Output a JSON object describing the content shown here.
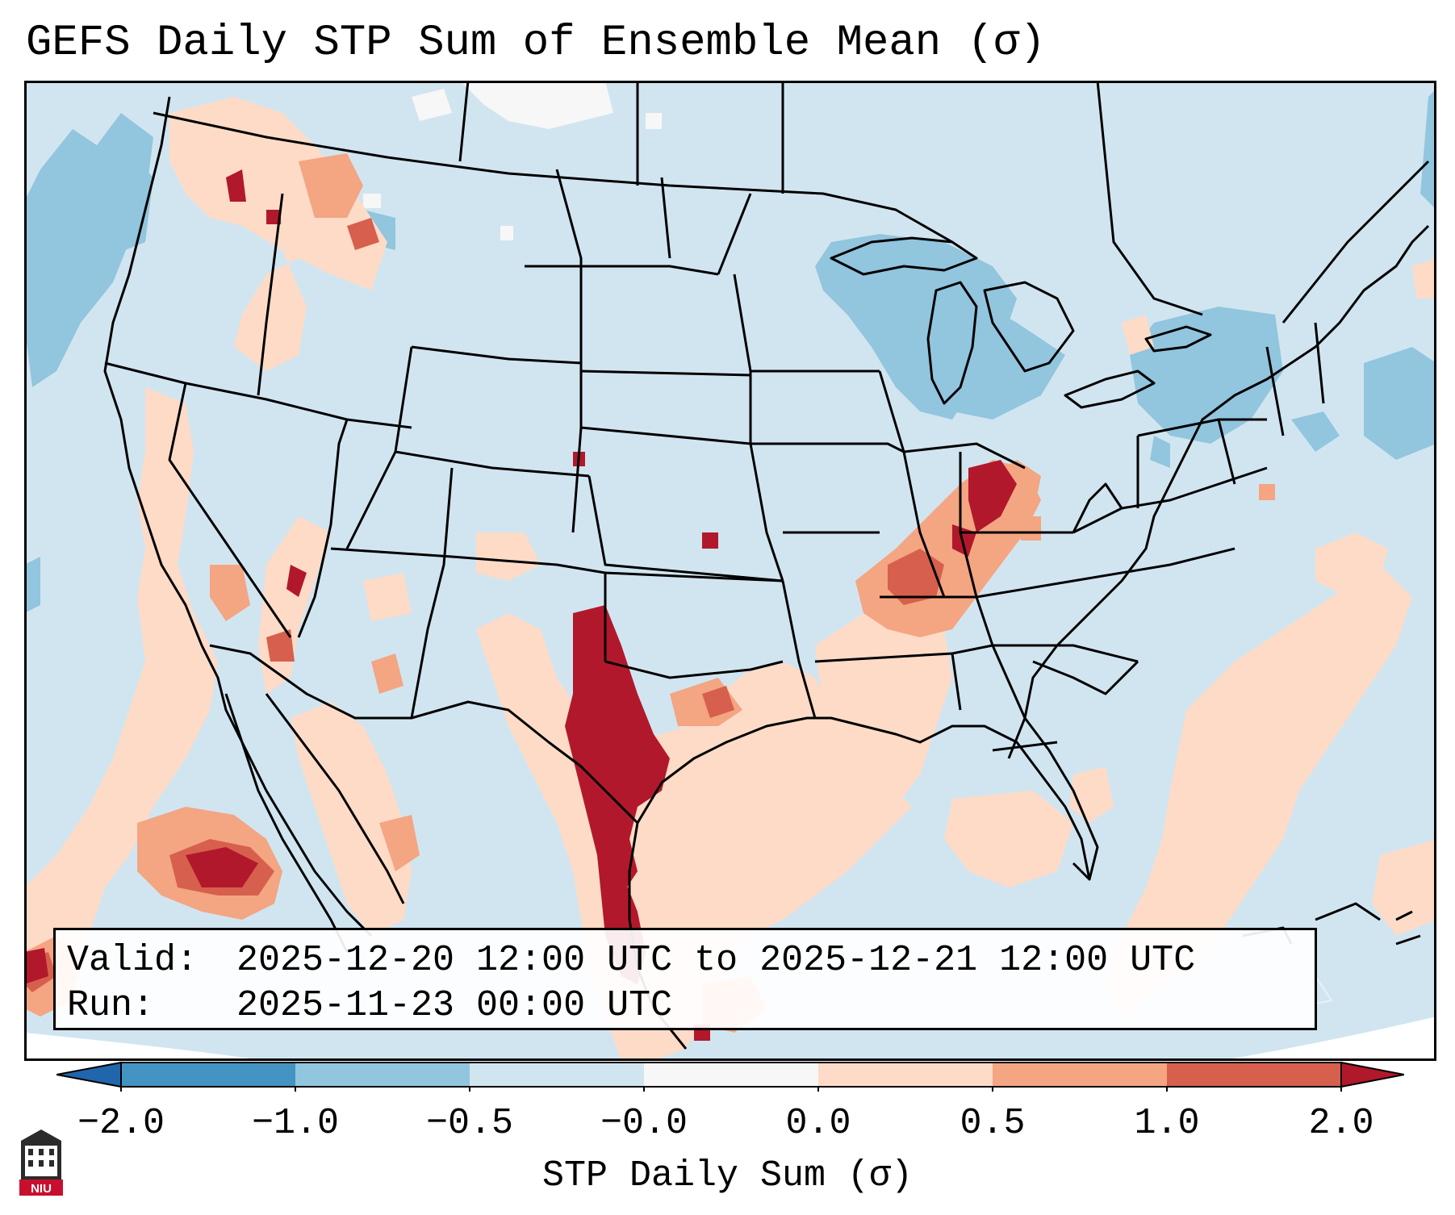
{
  "title": "GEFS Daily STP Sum of Ensemble Mean (σ)",
  "info": {
    "valid_label": "Valid:",
    "valid_value": "2025-12-20 12:00 UTC to 2025-12-21 12:00 UTC",
    "run_label": "Run:",
    "run_value": "2025-11-23 00:00 UTC"
  },
  "colorbar": {
    "label": "STP Daily Sum (σ)",
    "ticks": [
      "−2.0",
      "−1.0",
      "−0.5",
      "−0.0",
      "0.0",
      "0.5",
      "1.0",
      "2.0"
    ],
    "colors": [
      "#4393c3",
      "#92c5de",
      "#d1e5f0",
      "#f7f7f7",
      "#fddbc7",
      "#f4a582",
      "#d6604d"
    ],
    "extend_low_color": "#2166ac",
    "extend_high_color": "#b2182b"
  },
  "map": {
    "background_color": "#d1e5f0",
    "border_color": "#000000",
    "offmap_color": "#ffffff"
  },
  "logo": {
    "text": "NIU"
  }
}
